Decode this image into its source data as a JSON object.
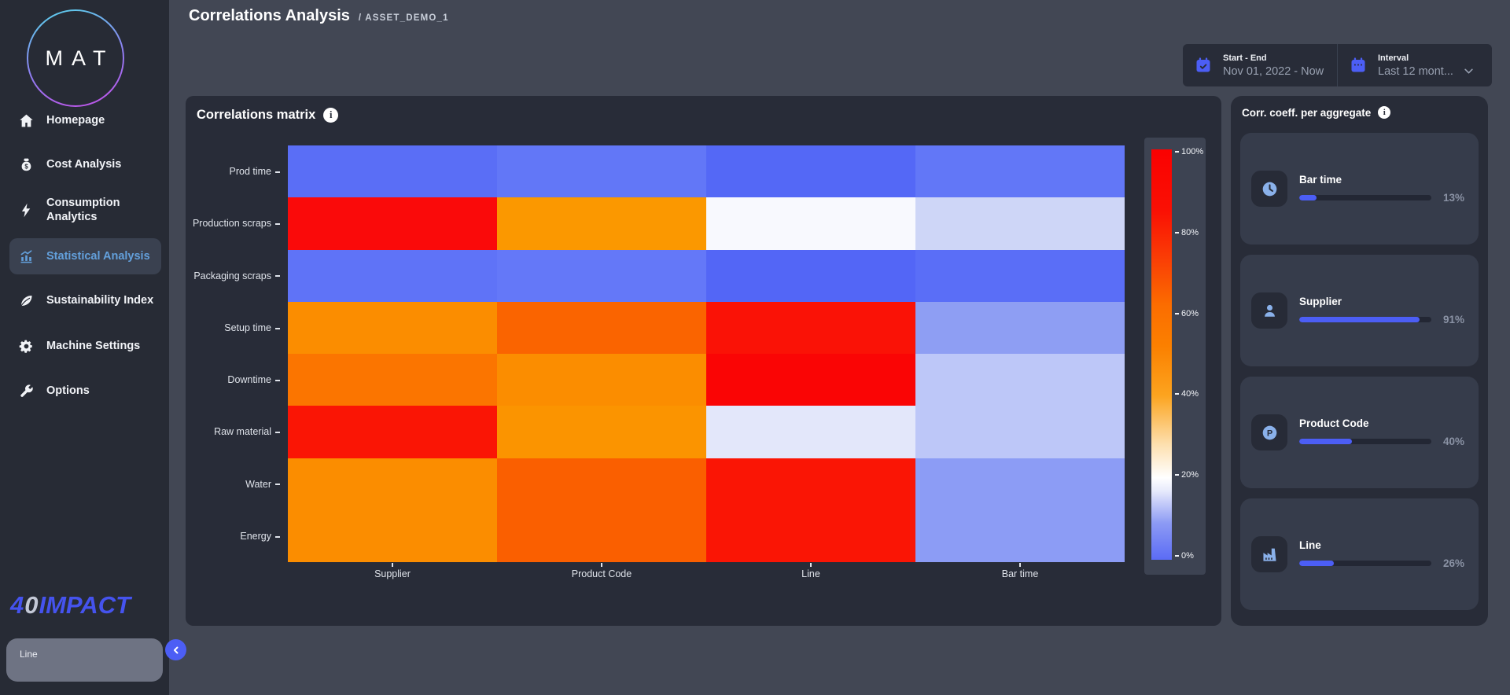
{
  "colors": {
    "accent_blue": "#4c5ef5",
    "active_nav_text": "#63a0dc",
    "card_icon_blue": "#8ab1ea",
    "panel_bg": "#282c38",
    "sidebar_bg": "#272b35",
    "page_bg": "#424754"
  },
  "sidebar": {
    "logo_text": "MAT",
    "items": [
      {
        "label": "Homepage",
        "icon": "home-icon",
        "active": false
      },
      {
        "label": "Cost Analysis",
        "icon": "money-bag-icon",
        "active": false
      },
      {
        "label": "Consumption Analytics",
        "icon": "lightning-icon",
        "active": false
      },
      {
        "label": "Statistical Analysis",
        "icon": "bar-chart-icon",
        "active": true
      },
      {
        "label": "Sustainability Index",
        "icon": "leaf-icon",
        "active": false
      },
      {
        "label": "Machine Settings",
        "icon": "gear-icon",
        "active": false
      },
      {
        "label": "Options",
        "icon": "wrench-icon",
        "active": false
      }
    ],
    "brand": {
      "four": "4",
      "zero": "0",
      "rest": "IMPACT"
    },
    "tooltip_label": "Line"
  },
  "header": {
    "title": "Correlations Analysis",
    "breadcrumb": "/ ASSET_DEMO_1"
  },
  "filters": {
    "start_end": {
      "label": "Start - End",
      "value": "Nov 01, 2022 - Now",
      "icon": "calendar-check-icon"
    },
    "interval": {
      "label": "Interval",
      "value": "Last 12 mont...",
      "icon": "calendar-icon"
    }
  },
  "matrix_panel": {
    "title": "Correlations matrix"
  },
  "aggregate_panel": {
    "title": "Corr. coeff. per aggregate",
    "cards": [
      {
        "label": "Bar time",
        "value_pct": 13,
        "value_text": "13%",
        "icon": "clock-icon"
      },
      {
        "label": "Supplier",
        "value_pct": 91,
        "value_text": "91%",
        "icon": "person-icon"
      },
      {
        "label": "Product Code",
        "value_pct": 40,
        "value_text": "40%",
        "icon": "product-code-icon"
      },
      {
        "label": "Line",
        "value_pct": 26,
        "value_text": "26%",
        "icon": "factory-icon"
      }
    ]
  },
  "chart_data": {
    "type": "heatmap",
    "title": "Correlations matrix",
    "x_categories": [
      "Supplier",
      "Product Code",
      "Line",
      "Bar time"
    ],
    "y_categories": [
      "Prod time",
      "Production scraps",
      "Packaging scraps",
      "Setup time",
      "Downtime",
      "Raw material",
      "Water",
      "Energy"
    ],
    "values_pct_estimated": [
      [
        2,
        4,
        1,
        4
      ],
      [
        90,
        45,
        20,
        15
      ],
      [
        3,
        4,
        1,
        2
      ],
      [
        48,
        60,
        87,
        8
      ],
      [
        55,
        48,
        92,
        13
      ],
      [
        85,
        46,
        17,
        13
      ],
      [
        48,
        62,
        85,
        8
      ],
      [
        48,
        62,
        85,
        8
      ]
    ],
    "cell_colors": [
      [
        "#5a6ef6",
        "#6277f7",
        "#5468f6",
        "#6277f7"
      ],
      [
        "#fa0a0a",
        "#fb9800",
        "#f8f9fe",
        "#ced6f7"
      ],
      [
        "#5f73f7",
        "#6478f8",
        "#5366f6",
        "#5a6ef7"
      ],
      [
        "#fb8d00",
        "#fa6400",
        "#fa1206",
        "#8e9ef3"
      ],
      [
        "#fb7500",
        "#fb8d00",
        "#fa0505",
        "#bdc7f8"
      ],
      [
        "#fa1505",
        "#fb9400",
        "#e3e7fa",
        "#bdc7f8"
      ],
      [
        "#fb8d00",
        "#fa5f00",
        "#fa1505",
        "#8c9cf5"
      ],
      [
        "#fb8d00",
        "#fa5f00",
        "#fa1505",
        "#8c9cf5"
      ]
    ],
    "colorbar": {
      "min": 0,
      "max": 100,
      "tick_labels": [
        "100%",
        "80%",
        "60%",
        "40%",
        "20%",
        "0%"
      ],
      "scale_anchors": {
        "0%": "#5b6cf5",
        "20%": "#ffffff",
        "60%": "#fb7a00",
        "100%": "#fa0101"
      },
      "legend_position": "right"
    },
    "grid": false
  }
}
